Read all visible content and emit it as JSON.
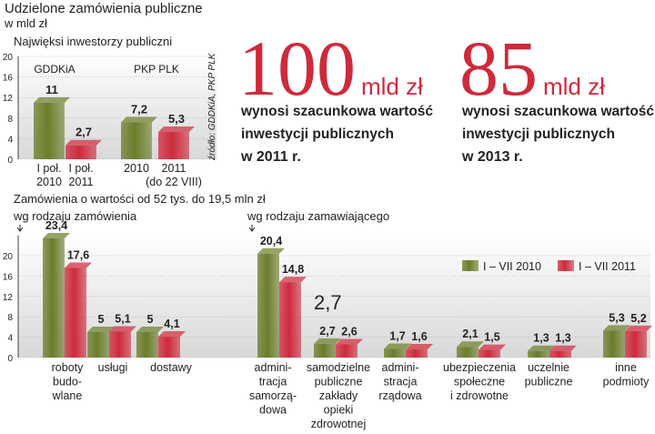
{
  "title": "Udzielone zamówienia publiczne",
  "subtitle": "w mld zł",
  "charts": {
    "top": {
      "type": "bar",
      "title": "Najwięksi inwestorzy publiczni",
      "groups": [
        "GDDKiA",
        "PKP PLK"
      ],
      "categories": [
        [
          "I poł.",
          "2010"
        ],
        [
          "I poł.",
          "2011"
        ],
        [
          "2010"
        ],
        [
          "2011",
          "(do 22 VIII)"
        ]
      ],
      "values": [
        11,
        2.7,
        7.2,
        5.3
      ],
      "value_labels": [
        "11",
        "2,7",
        "7,2",
        "5,3"
      ],
      "colors": [
        "#6b7d2a",
        "#cf2a3c",
        "#6b7d2a",
        "#cf2a3c"
      ],
      "ylim": [
        0,
        20
      ],
      "yticks": [
        0,
        4,
        8,
        12,
        16,
        20
      ],
      "source": "źródło: GDDKiA, PKP PLK"
    },
    "bottom": {
      "type": "bar",
      "title": "Zamówienia o wartości od 52 tys. do 19,5 mln zł",
      "sections": [
        "wg rodzaju zamówienia",
        "wg rodzaju zamawiającego"
      ],
      "annotation": "2,7",
      "categories": [
        [
          "roboty",
          "budo-",
          "wlane"
        ],
        [
          "usługi"
        ],
        [
          "dostawy"
        ],
        [
          "admini-",
          "tracja",
          "samorzą-",
          "dowa"
        ],
        [
          "samodzielne",
          "publiczne",
          "zakłady",
          "opieki",
          "zdrowotnej"
        ],
        [
          "admini-",
          "stracja",
          "rządowa"
        ],
        [
          "ubezpieczenia",
          "społeczne",
          "i zdrowotne"
        ],
        [
          "uczelnie",
          "publiczne"
        ],
        [
          "inne",
          "podmioty"
        ]
      ],
      "series": [
        {
          "name": "I – VII 2010",
          "color": "#6b7d2a",
          "values": [
            23.4,
            5,
            5,
            20.4,
            2.7,
            1.7,
            2.1,
            1.3,
            5.3
          ],
          "value_labels": [
            "23,4",
            "5",
            "5",
            "20,4",
            "2,7",
            "1,7",
            "2,1",
            "1,3",
            "5,3"
          ]
        },
        {
          "name": "I – VII 2011",
          "color": "#cf2a3c",
          "values": [
            17.6,
            5.1,
            4.1,
            14.8,
            2.6,
            1.6,
            1.5,
            1.3,
            5.2
          ],
          "value_labels": [
            "17,6",
            "5,1",
            "4,1",
            "14,8",
            "2,6",
            "1,6",
            "1,5",
            "1,3",
            "5,2"
          ]
        }
      ],
      "ylim": [
        0,
        24
      ],
      "yticks": [
        0,
        4,
        8,
        12,
        16,
        20
      ]
    }
  },
  "stats": [
    {
      "value": "100",
      "unit": "mld zł",
      "lines": [
        "wynosi szacunkowa wartość",
        "inwestycji publicznych",
        "w 2011 r."
      ]
    },
    {
      "value": "85",
      "unit": "mld zł",
      "lines": [
        "wynosi szacunkowa wartość",
        "inwestycji publicznych",
        "w 2013 r."
      ]
    }
  ]
}
